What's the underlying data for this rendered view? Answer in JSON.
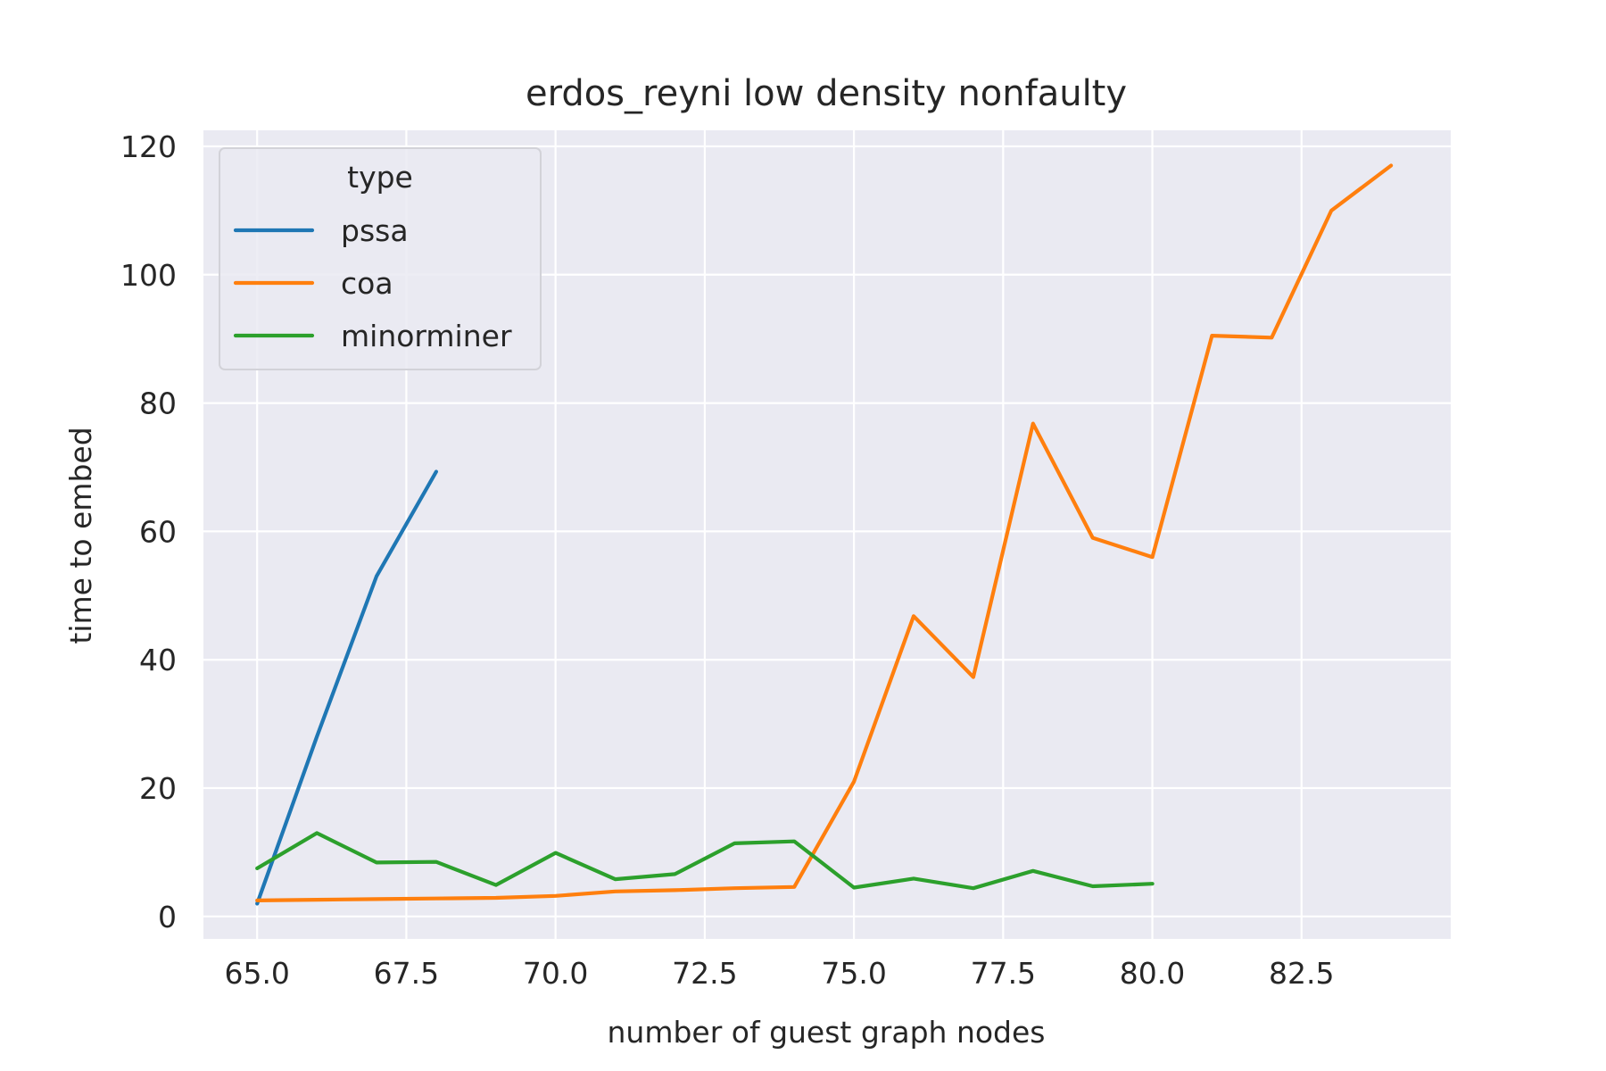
{
  "chart_data": {
    "type": "line",
    "title": "erdos_reyni low density nonfaulty",
    "xlabel": "number of guest graph nodes",
    "ylabel": "time to embed",
    "xlim": [
      64.1,
      85.0
    ],
    "ylim": [
      -3.5,
      122.5
    ],
    "xticks": [
      65.0,
      67.5,
      70.0,
      72.5,
      75.0,
      77.5,
      80.0,
      82.5
    ],
    "xtick_labels": [
      "65.0",
      "67.5",
      "70.0",
      "72.5",
      "75.0",
      "77.5",
      "80.0",
      "82.5"
    ],
    "yticks": [
      0,
      20,
      40,
      60,
      80,
      100,
      120
    ],
    "ytick_labels": [
      "0",
      "20",
      "40",
      "60",
      "80",
      "100",
      "120"
    ],
    "grid": true,
    "legend": {
      "title": "type",
      "position": "upper-left"
    },
    "series": [
      {
        "name": "pssa",
        "color": "#1f77b4",
        "x": [
          65,
          66,
          67,
          68
        ],
        "y": [
          2.0,
          28.0,
          53.0,
          69.3
        ]
      },
      {
        "name": "coa",
        "color": "#ff7f0e",
        "x": [
          65,
          66,
          67,
          68,
          69,
          70,
          71,
          72,
          73,
          74,
          75,
          76,
          77,
          78,
          79,
          80,
          81,
          82,
          83,
          84
        ],
        "y": [
          2.5,
          2.6,
          2.7,
          2.8,
          2.9,
          3.2,
          3.9,
          4.1,
          4.4,
          4.6,
          21.0,
          46.8,
          37.3,
          76.8,
          59.0,
          56.0,
          90.5,
          90.2,
          110.0,
          117.0
        ]
      },
      {
        "name": "minorminer",
        "color": "#2ca02c",
        "x": [
          65,
          66,
          67,
          68,
          69,
          70,
          71,
          72,
          73,
          74,
          75,
          76,
          77,
          78,
          79,
          80
        ],
        "y": [
          7.5,
          13.0,
          8.4,
          8.5,
          4.9,
          9.9,
          5.8,
          6.6,
          11.4,
          11.7,
          4.5,
          5.9,
          4.4,
          7.1,
          4.7,
          5.1
        ]
      }
    ]
  }
}
